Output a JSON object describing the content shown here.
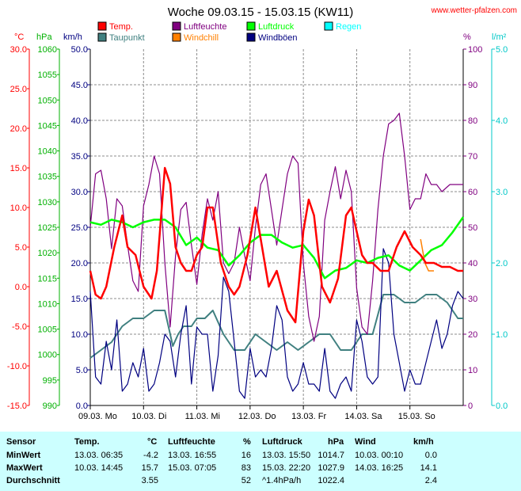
{
  "chart_data": {
    "type": "line",
    "title": "Woche 09.03.15 - 15.03.15 (KW11)",
    "source": "www.wetter-pfalzen.com",
    "x_categories": [
      "09.03. Mo",
      "10.03. Di",
      "11.03. Mi",
      "12.03. Do",
      "13.03. Fr",
      "14.03. Sa",
      "15.03. So"
    ],
    "x_range_days": [
      0,
      7
    ],
    "axes": {
      "temp": {
        "unit": "°C",
        "min": -15,
        "max": 30,
        "ticks": [
          "30.0",
          "25.0",
          "20.0",
          "15.0",
          "10.0",
          "5.0",
          "0.0",
          "-5.0",
          "-10.0",
          "-15.0"
        ],
        "color": "#ff0000"
      },
      "pressure": {
        "unit": "hPa",
        "min": 990,
        "max": 1060,
        "ticks": [
          "1060",
          "1055",
          "1050",
          "1045",
          "1040",
          "1035",
          "1030",
          "1025",
          "1020",
          "1015",
          "1010",
          "1005",
          "1000",
          "995",
          "990"
        ],
        "color": "#00b000"
      },
      "wind": {
        "unit": "km/h",
        "min": 0,
        "max": 50,
        "ticks": [
          "50.0",
          "45.0",
          "40.0",
          "35.0",
          "30.0",
          "25.0",
          "20.0",
          "15.0",
          "10.0",
          "5.0",
          "0.0"
        ],
        "color": "#000080"
      },
      "humidity": {
        "unit": "%",
        "min": 0,
        "max": 100,
        "ticks": [
          "100",
          "90",
          "80",
          "70",
          "60",
          "50",
          "40",
          "30",
          "20",
          "10",
          "0"
        ],
        "color": "#800080"
      },
      "rain": {
        "unit": "l/m²",
        "min": 0,
        "max": 5,
        "ticks": [
          "5.0",
          "4.0",
          "3.0",
          "2.0",
          "1.0",
          "0.0"
        ],
        "color": "#00c8c8"
      }
    },
    "legend": [
      {
        "name": "Temp.",
        "color": "#ff0000"
      },
      {
        "name": "Luftfeuchte",
        "color": "#800080"
      },
      {
        "name": "Luftdruck",
        "color": "#00ff00"
      },
      {
        "name": "Regen",
        "color": "#00ffff"
      },
      {
        "name": "Taupunkt",
        "color": "#408080"
      },
      {
        "name": "Windchill",
        "color": "#ff8000"
      },
      {
        "name": "Windböen",
        "color": "#000080"
      }
    ],
    "series": [
      {
        "name": "Temp.",
        "axis": "temp",
        "color": "#ff0000",
        "x": [
          0,
          0.1,
          0.2,
          0.3,
          0.45,
          0.6,
          0.7,
          0.85,
          1.0,
          1.15,
          1.25,
          1.4,
          1.5,
          1.6,
          1.7,
          1.8,
          1.9,
          2.0,
          2.1,
          2.2,
          2.3,
          2.45,
          2.6,
          2.7,
          2.8,
          2.95,
          3.1,
          3.2,
          3.35,
          3.5,
          3.7,
          3.85,
          4.0,
          4.1,
          4.2,
          4.35,
          4.5,
          4.65,
          4.8,
          4.9,
          5.0,
          5.1,
          5.2,
          5.3,
          5.45,
          5.6,
          5.75,
          5.9,
          6.05,
          6.2,
          6.3,
          6.45,
          6.6,
          6.75,
          6.9,
          7.0
        ],
        "y": [
          2,
          -1,
          -1.5,
          0,
          5,
          9,
          5,
          4,
          0,
          -1.5,
          2,
          15,
          13,
          5,
          3,
          2,
          2,
          4,
          5,
          10,
          10,
          3,
          0,
          -1,
          0,
          4,
          10,
          6,
          0,
          2,
          -3,
          -4.5,
          7,
          11,
          9,
          0,
          -2,
          1,
          9,
          10,
          7,
          4,
          3,
          3,
          2,
          2,
          5,
          7,
          5,
          4,
          3,
          3,
          2.5,
          2.5,
          2,
          2
        ]
      },
      {
        "name": "Taupunkt",
        "axis": "temp",
        "color": "#408080",
        "x": [
          0,
          0.2,
          0.4,
          0.6,
          0.8,
          1.0,
          1.2,
          1.4,
          1.55,
          1.65,
          1.75,
          1.9,
          2.0,
          2.15,
          2.3,
          2.5,
          2.7,
          2.9,
          3.1,
          3.3,
          3.5,
          3.7,
          3.9,
          4.1,
          4.3,
          4.5,
          4.7,
          4.9,
          5.1,
          5.3,
          5.5,
          5.7,
          5.9,
          6.1,
          6.3,
          6.5,
          6.7,
          6.9,
          7.0
        ],
        "y": [
          -9,
          -8,
          -7,
          -5,
          -4,
          -4,
          -3,
          -3,
          -7.5,
          -6,
          -5,
          -5,
          -4,
          -4,
          -3,
          -6,
          -8,
          -8,
          -6,
          -7,
          -8,
          -7,
          -8,
          -7,
          -6,
          -6,
          -8,
          -8,
          -6,
          -6,
          -1,
          -1,
          -2,
          -2,
          -1,
          -1,
          -2,
          -4,
          -4
        ]
      },
      {
        "name": "Windchill",
        "axis": "temp",
        "color": "#ff8000",
        "x": [
          6.2,
          6.28,
          6.35,
          6.45
        ],
        "y": [
          6,
          3,
          2,
          2
        ]
      },
      {
        "name": "Luftdruck",
        "axis": "pressure",
        "color": "#00ff00",
        "x": [
          0,
          0.2,
          0.4,
          0.6,
          0.8,
          1.0,
          1.2,
          1.4,
          1.6,
          1.8,
          2.0,
          2.2,
          2.4,
          2.6,
          2.8,
          3.0,
          3.2,
          3.4,
          3.6,
          3.8,
          4.0,
          4.2,
          4.4,
          4.6,
          4.8,
          5.0,
          5.2,
          5.4,
          5.6,
          5.8,
          6.0,
          6.2,
          6.4,
          6.6,
          6.8,
          7.0
        ],
        "y": [
          1026,
          1025.5,
          1026.5,
          1026,
          1025,
          1026,
          1026.5,
          1026.5,
          1025,
          1021.5,
          1023,
          1021,
          1020.5,
          1017.5,
          1019.5,
          1022,
          1023.5,
          1023.5,
          1022,
          1021,
          1021.5,
          1019,
          1015,
          1016.5,
          1017,
          1018.5,
          1018,
          1019,
          1019.5,
          1017.5,
          1016.5,
          1018.5,
          1020.5,
          1021.5,
          1024,
          1027
        ]
      },
      {
        "name": "Luftfeuchte",
        "axis": "humidity",
        "color": "#800080",
        "x": [
          0,
          0.1,
          0.2,
          0.3,
          0.4,
          0.5,
          0.6,
          0.7,
          0.8,
          0.9,
          1.0,
          1.1,
          1.2,
          1.3,
          1.4,
          1.5,
          1.6,
          1.7,
          1.8,
          1.9,
          2.0,
          2.1,
          2.2,
          2.3,
          2.4,
          2.5,
          2.6,
          2.7,
          2.8,
          2.9,
          3.0,
          3.1,
          3.2,
          3.3,
          3.4,
          3.5,
          3.6,
          3.7,
          3.8,
          3.9,
          4.0,
          4.1,
          4.2,
          4.3,
          4.4,
          4.5,
          4.6,
          4.7,
          4.8,
          4.9,
          5.0,
          5.1,
          5.2,
          5.3,
          5.4,
          5.5,
          5.6,
          5.7,
          5.8,
          5.9,
          6.0,
          6.1,
          6.2,
          6.3,
          6.4,
          6.5,
          6.6,
          6.75,
          6.9,
          7.0
        ],
        "y": [
          50,
          65,
          66,
          58,
          44,
          58,
          56,
          45,
          35,
          32,
          56,
          62,
          70,
          65,
          40,
          22,
          42,
          55,
          57,
          45,
          34,
          48,
          58,
          52,
          60,
          40,
          37,
          40,
          50,
          42,
          35,
          50,
          62,
          65,
          55,
          45,
          55,
          65,
          70,
          68,
          40,
          25,
          18,
          25,
          52,
          60,
          67,
          58,
          66,
          60,
          33,
          22,
          20,
          35,
          55,
          70,
          79,
          80,
          82,
          70,
          55,
          58,
          58,
          65,
          62,
          62,
          60,
          62,
          62,
          62
        ]
      },
      {
        "name": "Windböen",
        "axis": "wind",
        "color": "#000080",
        "x": [
          0,
          0.1,
          0.2,
          0.3,
          0.4,
          0.5,
          0.6,
          0.7,
          0.8,
          0.9,
          1.0,
          1.1,
          1.2,
          1.3,
          1.4,
          1.5,
          1.6,
          1.7,
          1.8,
          1.9,
          2.0,
          2.1,
          2.2,
          2.3,
          2.4,
          2.5,
          2.6,
          2.7,
          2.8,
          2.9,
          3.0,
          3.1,
          3.2,
          3.3,
          3.4,
          3.5,
          3.6,
          3.7,
          3.8,
          3.9,
          4.0,
          4.1,
          4.2,
          4.3,
          4.4,
          4.5,
          4.6,
          4.7,
          4.8,
          4.9,
          5.0,
          5.1,
          5.2,
          5.3,
          5.4,
          5.5,
          5.6,
          5.7,
          5.8,
          5.9,
          6.0,
          6.1,
          6.2,
          6.3,
          6.4,
          6.5,
          6.6,
          6.7,
          6.8,
          6.9,
          7.0
        ],
        "y": [
          16,
          4,
          3,
          9,
          5,
          12,
          2,
          3,
          6,
          4,
          8,
          2,
          3,
          6,
          10,
          9,
          4,
          10,
          14,
          3,
          11,
          10,
          10,
          2,
          7,
          18,
          16,
          9,
          2,
          1,
          8,
          4,
          5,
          4,
          8,
          14,
          12,
          4,
          2,
          3,
          6,
          3,
          3,
          2,
          8,
          2,
          1,
          3,
          4,
          2,
          12,
          9,
          4,
          3,
          4,
          22,
          20,
          10,
          6,
          2,
          5,
          3,
          3,
          6,
          9,
          12,
          8,
          10,
          14,
          16,
          15
        ]
      }
    ]
  },
  "stats": {
    "headers": {
      "sensor": "Sensor",
      "temp": "Temp.",
      "temp_unit": "°C",
      "hum": "Luftfeuchte",
      "hum_unit": "%",
      "press": "Luftdruck",
      "press_unit": "hPa",
      "wind": "Wind",
      "wind_unit": "km/h"
    },
    "min": {
      "label": "MinWert",
      "t_time": "13.03.  06:35",
      "t_val": "-4.2",
      "h_time": "13.03.  16:55",
      "h_val": "16",
      "p_time": "13.03.  15:50",
      "p_val": "1014.7",
      "w_time": "10.03.  00:10",
      "w_val": "0.0"
    },
    "max": {
      "label": "MaxWert",
      "t_time": "10.03.  14:45",
      "t_val": "15.7",
      "h_time": "15.03.  07:05",
      "h_val": "83",
      "p_time": "15.03.  22:20",
      "p_val": "1027.9",
      "w_time": "14.03.  16:25",
      "w_val": "14.1"
    },
    "avg": {
      "label": "Durchschnitt",
      "t_val": "3.55",
      "h_val": "52",
      "p_trend": "^1.4hPa/h",
      "p_val": "1022.4",
      "w_val": "2.4"
    }
  }
}
